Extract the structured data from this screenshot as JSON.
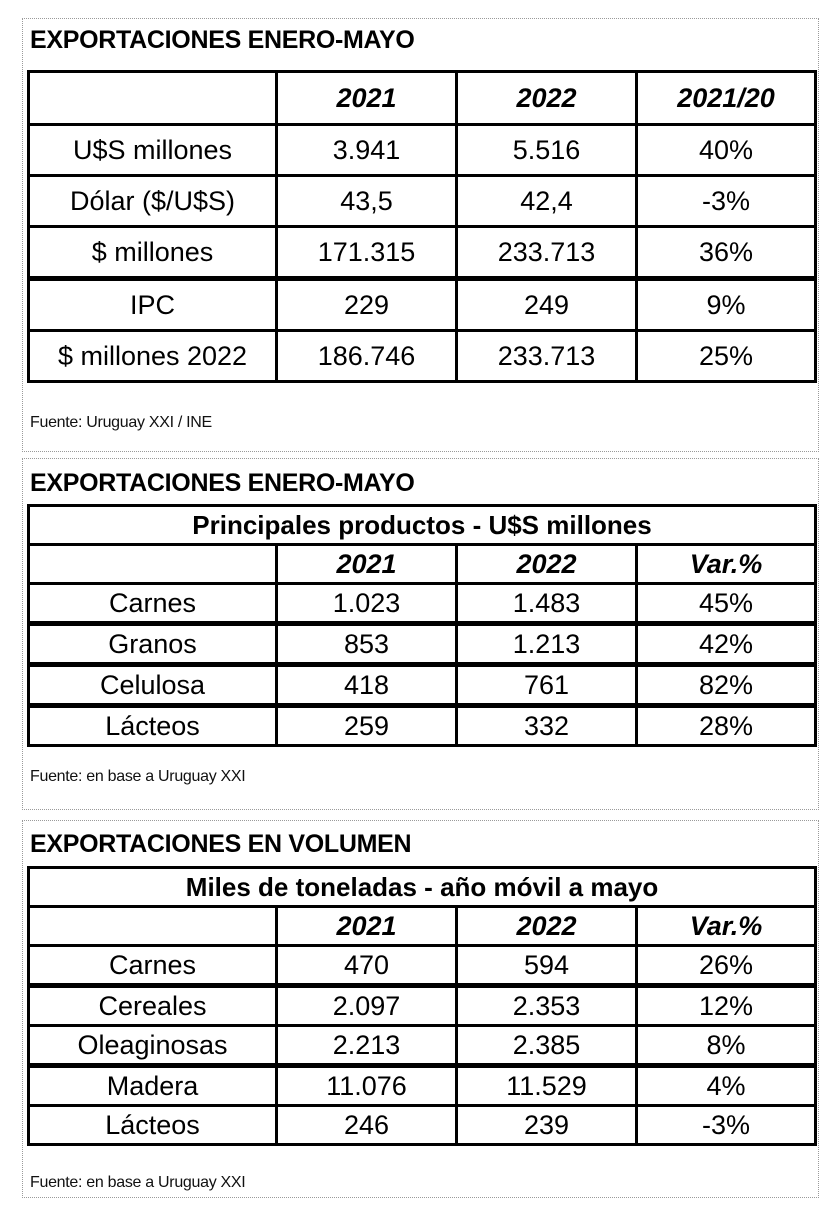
{
  "table1": {
    "title": "EXPORTACIONES ENERO-MAYO",
    "headers": [
      "",
      "2021",
      "2022",
      "2021/20"
    ],
    "rows": [
      [
        "U$S millones",
        "3.941",
        "5.516",
        "40%"
      ],
      [
        "Dólar ($/U$S)",
        "43,5",
        "42,4",
        "-3%"
      ],
      [
        "$ millones",
        "171.315",
        "233.713",
        "36%"
      ],
      [
        "IPC",
        "229",
        "249",
        "9%"
      ],
      [
        "$ millones 2022",
        "186.746",
        "233.713",
        "25%"
      ]
    ],
    "source": "Fuente: Uruguay XXI / INE"
  },
  "table2": {
    "title": "EXPORTACIONES ENERO-MAYO",
    "subtitle": "Principales productos - U$S millones",
    "headers": [
      "",
      "2021",
      "2022",
      "Var.%"
    ],
    "rows": [
      [
        "Carnes",
        "1.023",
        "1.483",
        "45%"
      ],
      [
        "Granos",
        "853",
        "1.213",
        "42%"
      ],
      [
        "Celulosa",
        "418",
        "761",
        "82%"
      ],
      [
        "Lácteos",
        "259",
        "332",
        "28%"
      ]
    ],
    "source": "Fuente: en base a Uruguay XXI"
  },
  "table3": {
    "title": "EXPORTACIONES EN VOLUMEN",
    "subtitle": "Miles de toneladas - año móvil a mayo",
    "headers": [
      "",
      "2021",
      "2022",
      "Var.%"
    ],
    "rows": [
      [
        "Carnes",
        "470",
        "594",
        "26%"
      ],
      [
        "Cereales",
        "2.097",
        "2.353",
        "12%"
      ],
      [
        "Oleaginosas",
        "2.213",
        "2.385",
        "8%"
      ],
      [
        "Madera",
        "11.076",
        "11.529",
        "4%"
      ],
      [
        "Lácteos",
        "246",
        "239",
        "-3%"
      ]
    ],
    "source": "Fuente: en base a Uruguay XXI"
  }
}
